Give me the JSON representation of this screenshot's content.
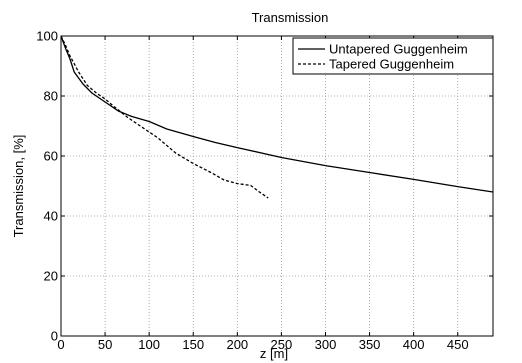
{
  "chart_data": {
    "type": "line",
    "title": "Transmission",
    "xlabel": "z [m]",
    "ylabel": "Transmission, [%]",
    "xlim": [
      0,
      490
    ],
    "ylim": [
      0,
      100
    ],
    "x_ticks": [
      0,
      50,
      100,
      150,
      200,
      250,
      300,
      350,
      400,
      450
    ],
    "y_ticks": [
      0,
      20,
      40,
      60,
      80,
      100
    ],
    "grid": true,
    "legend_position": "top-right",
    "series": [
      {
        "name": "Untapered Guggenheim",
        "style": "solid",
        "color": "#000000",
        "points": [
          [
            0,
            100
          ],
          [
            5,
            96
          ],
          [
            10,
            92.5
          ],
          [
            15,
            88
          ],
          [
            20,
            86
          ],
          [
            25,
            84
          ],
          [
            35,
            81
          ],
          [
            50,
            78
          ],
          [
            65,
            75
          ],
          [
            80,
            73.2
          ],
          [
            100,
            71.5
          ],
          [
            120,
            69
          ],
          [
            150,
            66.5
          ],
          [
            175,
            64.5
          ],
          [
            200,
            62.8
          ],
          [
            250,
            59.5
          ],
          [
            300,
            56.8
          ],
          [
            350,
            54.5
          ],
          [
            400,
            52.2
          ],
          [
            450,
            49.8
          ],
          [
            490,
            48
          ]
        ]
      },
      {
        "name": "Tapered Guggenheim",
        "style": "dashed",
        "color": "#000000",
        "points": [
          [
            0,
            100
          ],
          [
            5,
            97
          ],
          [
            10,
            93.5
          ],
          [
            20,
            88
          ],
          [
            30,
            83.5
          ],
          [
            40,
            81
          ],
          [
            50,
            79
          ],
          [
            60,
            76.5
          ],
          [
            75,
            73
          ],
          [
            90,
            70
          ],
          [
            110,
            66
          ],
          [
            130,
            61
          ],
          [
            150,
            57.5
          ],
          [
            170,
            54.5
          ],
          [
            185,
            52
          ],
          [
            200,
            50.8
          ],
          [
            215,
            50.2
          ],
          [
            225,
            48
          ],
          [
            235,
            46
          ]
        ]
      }
    ]
  }
}
